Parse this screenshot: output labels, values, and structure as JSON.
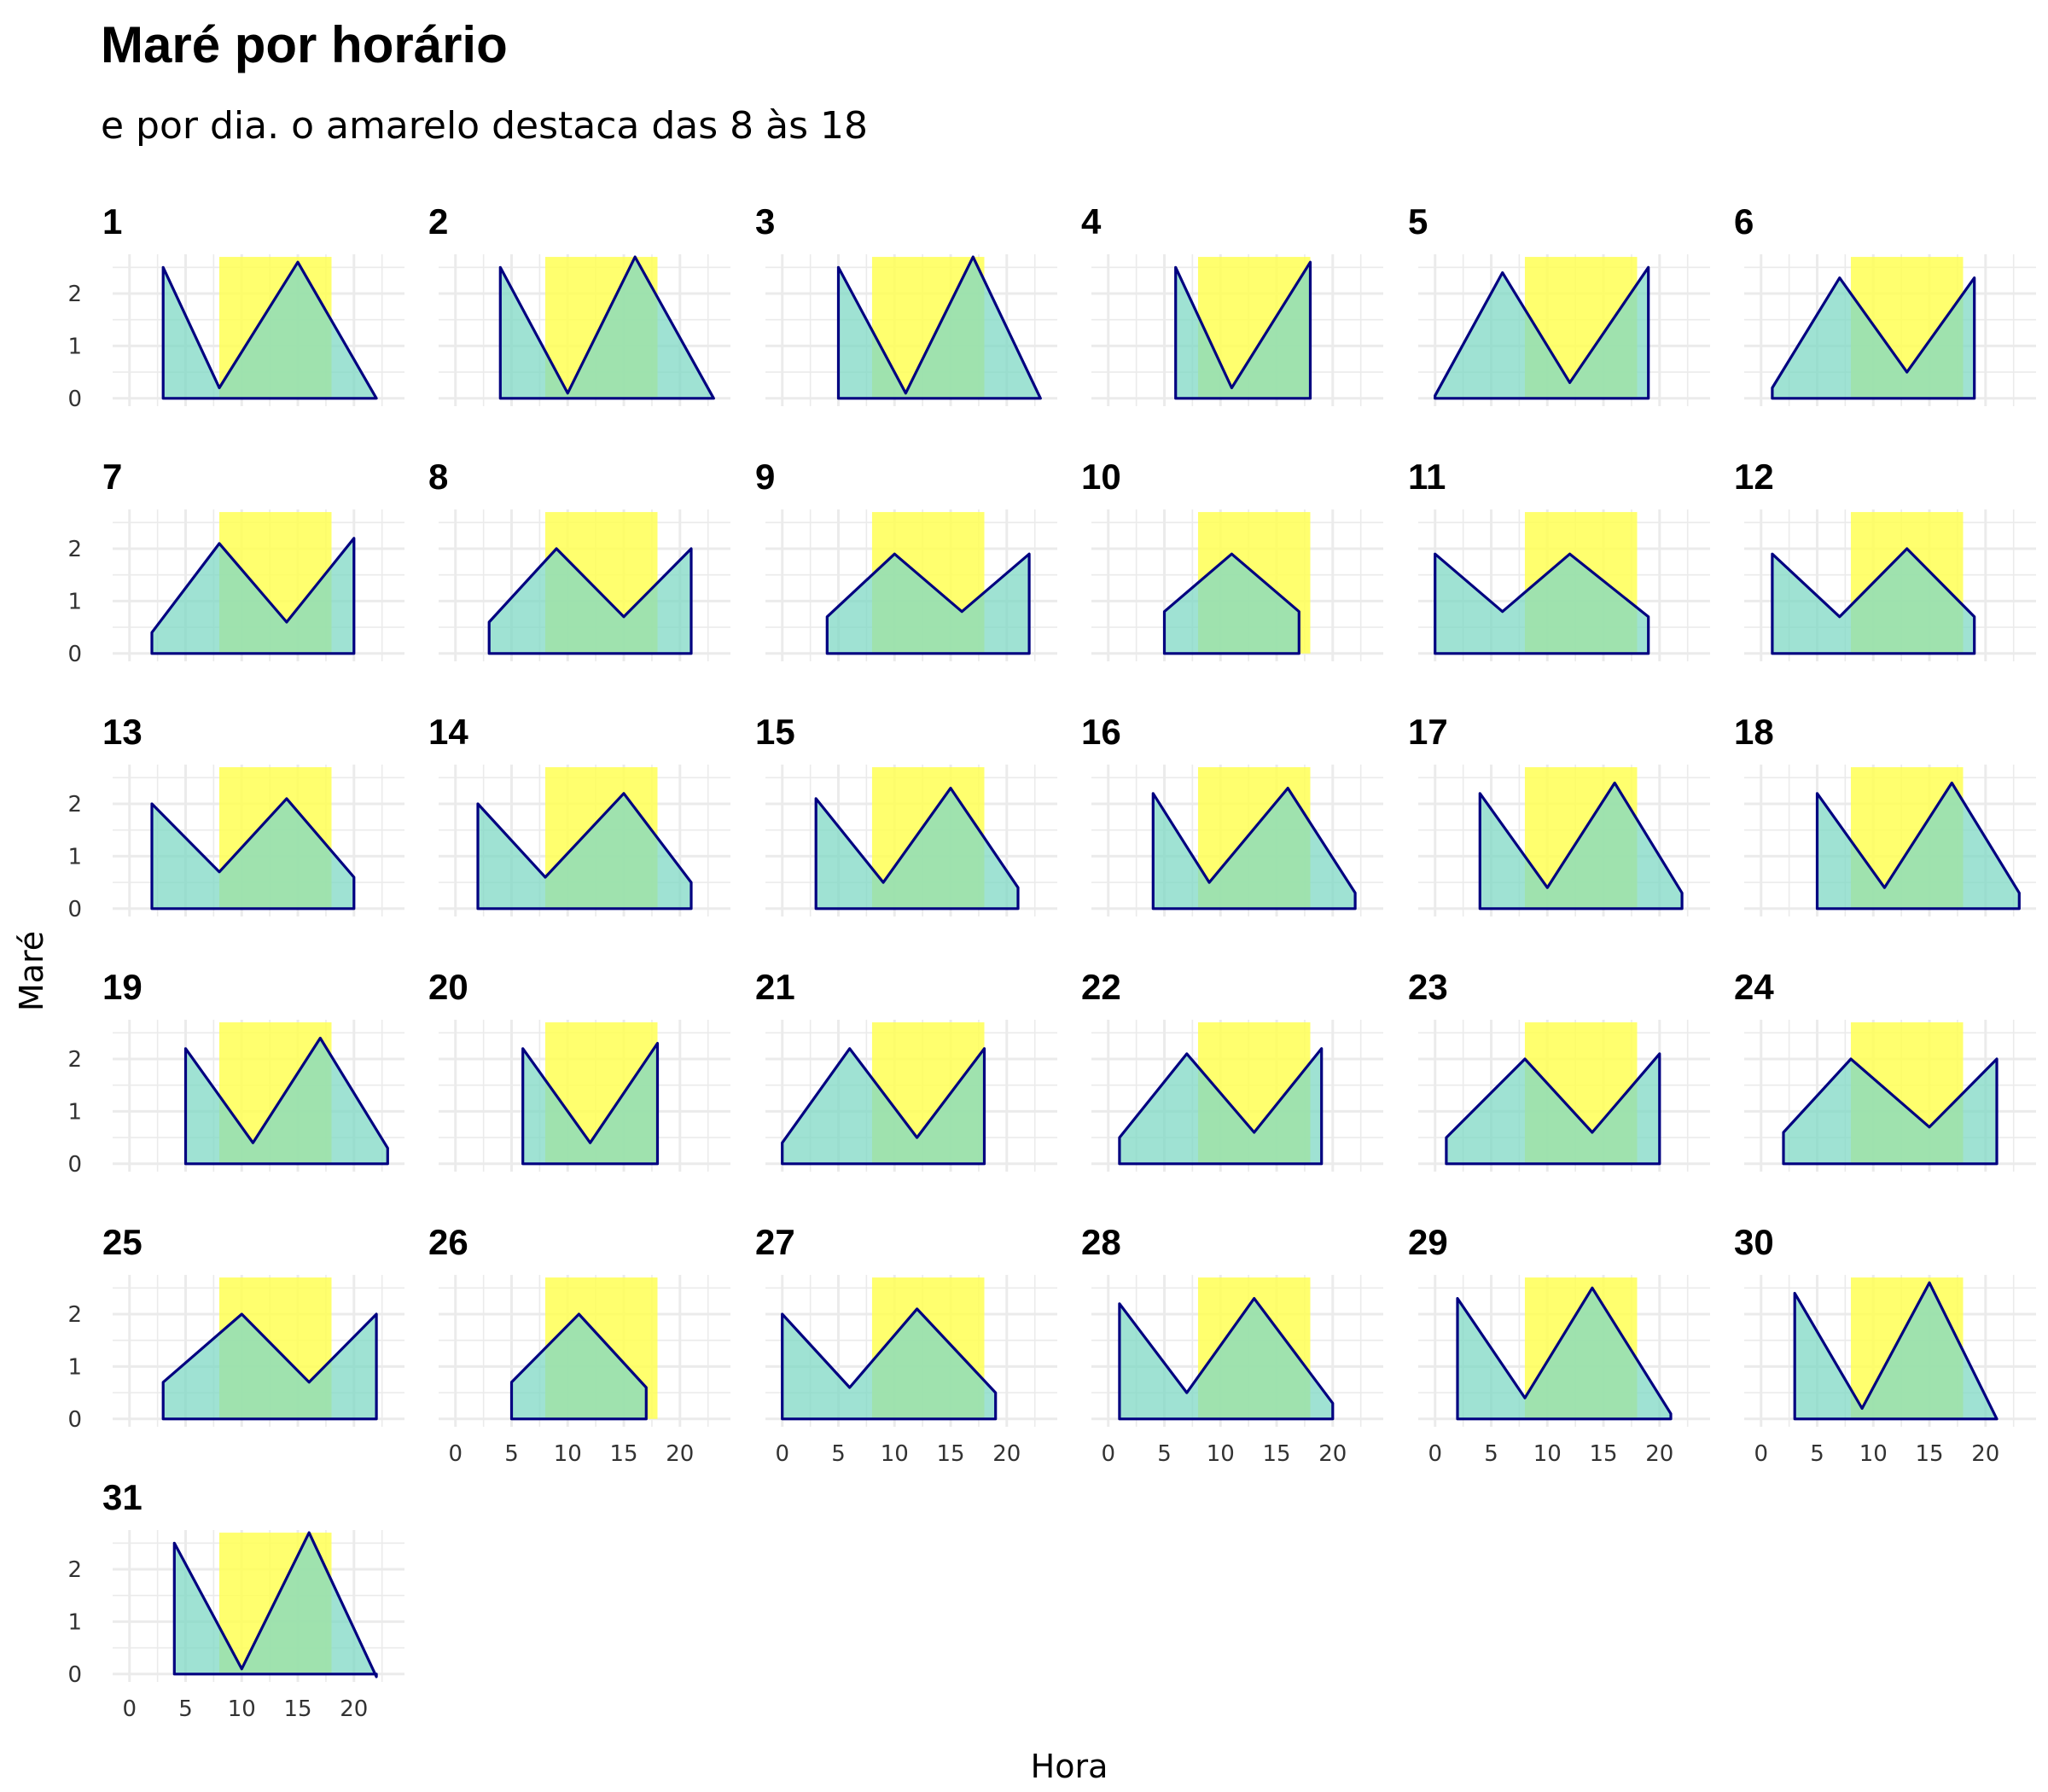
{
  "chart_data": {
    "type": "area",
    "title": "Maré por horário",
    "subtitle": "e por dia. o amarelo destaca das 8 às 18",
    "xlabel": "Hora",
    "ylabel": "Maré",
    "xlim": [
      -1.5,
      24.5
    ],
    "ylim": [
      -0.15,
      2.75
    ],
    "x_ticks": [
      0,
      5,
      10,
      15,
      20
    ],
    "x_tick_labels": [
      "0",
      "5",
      "10",
      "15",
      "20"
    ],
    "y_ticks": [
      0,
      1,
      2
    ],
    "y_tick_labels": [
      "0",
      "1",
      "2"
    ],
    "highlight": {
      "from": 8,
      "to": 18,
      "color": "#ffff55"
    },
    "fill_color": "#7fd8c4",
    "line_color": "#000080",
    "grid": true,
    "grid_color": "#ebebeb",
    "facets": [
      {
        "label": "1",
        "x": [
          3,
          8,
          15,
          22
        ],
        "y": [
          2.5,
          0.2,
          2.6,
          0
        ]
      },
      {
        "label": "2",
        "x": [
          4,
          10,
          16,
          23
        ],
        "y": [
          2.5,
          0.1,
          2.7,
          0
        ]
      },
      {
        "label": "3",
        "x": [
          5,
          11,
          17,
          23
        ],
        "y": [
          2.5,
          0.1,
          2.7,
          0
        ]
      },
      {
        "label": "4",
        "x": [
          6,
          11,
          18
        ],
        "y": [
          2.5,
          0.2,
          2.6
        ]
      },
      {
        "label": "5",
        "x": [
          0,
          6,
          12,
          19
        ],
        "y": [
          0.05,
          2.4,
          0.3,
          2.5
        ]
      },
      {
        "label": "6",
        "x": [
          1,
          7,
          13,
          19
        ],
        "y": [
          0.2,
          2.3,
          0.5,
          2.3
        ]
      },
      {
        "label": "7",
        "x": [
          2,
          8,
          14,
          20
        ],
        "y": [
          0.4,
          2.1,
          0.6,
          2.2
        ]
      },
      {
        "label": "8",
        "x": [
          3,
          9,
          15,
          21
        ],
        "y": [
          0.6,
          2.0,
          0.7,
          2.0
        ]
      },
      {
        "label": "9",
        "x": [
          4,
          10,
          16,
          22
        ],
        "y": [
          0.7,
          1.9,
          0.8,
          1.9
        ]
      },
      {
        "label": "10",
        "x": [
          5,
          11,
          17
        ],
        "y": [
          0.8,
          1.9,
          0.8
        ]
      },
      {
        "label": "11",
        "x": [
          0,
          6,
          12,
          19
        ],
        "y": [
          1.9,
          0.8,
          1.9,
          0.7
        ]
      },
      {
        "label": "12",
        "x": [
          1,
          7,
          13,
          19
        ],
        "y": [
          1.9,
          0.7,
          2.0,
          0.7
        ]
      },
      {
        "label": "13",
        "x": [
          2,
          8,
          14,
          20
        ],
        "y": [
          2.0,
          0.7,
          2.1,
          0.6
        ]
      },
      {
        "label": "14",
        "x": [
          2,
          8,
          15,
          21
        ],
        "y": [
          2.0,
          0.6,
          2.2,
          0.5
        ]
      },
      {
        "label": "15",
        "x": [
          3,
          9,
          15,
          21
        ],
        "y": [
          2.1,
          0.5,
          2.3,
          0.4
        ]
      },
      {
        "label": "16",
        "x": [
          4,
          9,
          16,
          22
        ],
        "y": [
          2.2,
          0.5,
          2.3,
          0.3
        ]
      },
      {
        "label": "17",
        "x": [
          4,
          10,
          16,
          22
        ],
        "y": [
          2.2,
          0.4,
          2.4,
          0.3
        ]
      },
      {
        "label": "18",
        "x": [
          5,
          11,
          17,
          23
        ],
        "y": [
          2.2,
          0.4,
          2.4,
          0.3
        ]
      },
      {
        "label": "19",
        "x": [
          5,
          11,
          17,
          23
        ],
        "y": [
          2.2,
          0.4,
          2.4,
          0.3
        ]
      },
      {
        "label": "20",
        "x": [
          6,
          12,
          18
        ],
        "y": [
          2.2,
          0.4,
          2.3
        ]
      },
      {
        "label": "21",
        "x": [
          0,
          6,
          12,
          18
        ],
        "y": [
          0.4,
          2.2,
          0.5,
          2.2
        ]
      },
      {
        "label": "22",
        "x": [
          1,
          7,
          13,
          19
        ],
        "y": [
          0.5,
          2.1,
          0.6,
          2.2
        ]
      },
      {
        "label": "23",
        "x": [
          1,
          8,
          14,
          20
        ],
        "y": [
          0.5,
          2.0,
          0.6,
          2.1
        ]
      },
      {
        "label": "24",
        "x": [
          2,
          8,
          15,
          21
        ],
        "y": [
          0.6,
          2.0,
          0.7,
          2.0
        ]
      },
      {
        "label": "25",
        "x": [
          3,
          10,
          16,
          22
        ],
        "y": [
          0.7,
          2.0,
          0.7,
          2.0
        ]
      },
      {
        "label": "26",
        "x": [
          5,
          11,
          17
        ],
        "y": [
          0.7,
          2.0,
          0.6
        ]
      },
      {
        "label": "27",
        "x": [
          0,
          6,
          12,
          19
        ],
        "y": [
          2.0,
          0.6,
          2.1,
          0.5
        ]
      },
      {
        "label": "28",
        "x": [
          1,
          7,
          13,
          20
        ],
        "y": [
          2.2,
          0.5,
          2.3,
          0.3
        ]
      },
      {
        "label": "29",
        "x": [
          2,
          8,
          14,
          21
        ],
        "y": [
          2.3,
          0.4,
          2.5,
          0.1
        ]
      },
      {
        "label": "30",
        "x": [
          3,
          9,
          15,
          21
        ],
        "y": [
          2.4,
          0.2,
          2.6,
          0
        ]
      },
      {
        "label": "31",
        "x": [
          4,
          10,
          16,
          22
        ],
        "y": [
          2.5,
          0.1,
          2.7,
          -0.05
        ]
      }
    ]
  }
}
